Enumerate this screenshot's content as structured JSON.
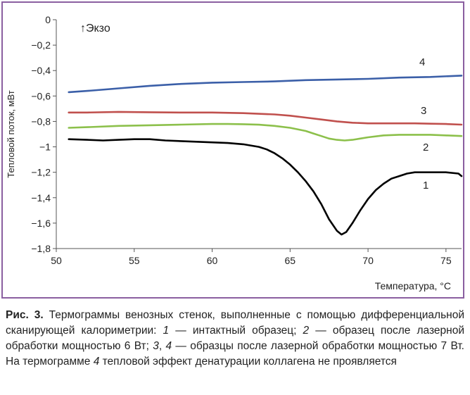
{
  "chart_data": {
    "type": "line",
    "title": "",
    "xlabel": "Температура, °С",
    "ylabel": "Тепловой поток, мВт",
    "annotation": "↑Экзо",
    "xlim": [
      50,
      76
    ],
    "ylim": [
      -1.8,
      0
    ],
    "xticks": [
      "50",
      "55",
      "60",
      "65",
      "70",
      "75"
    ],
    "yticks": [
      "0",
      "−0,2",
      "−0,4",
      "−0,6",
      "−0,8",
      "−1",
      "−1,2",
      "−1,4",
      "−1,6",
      "−1,8"
    ],
    "grid": false,
    "series": [
      {
        "name": "1",
        "color": "#000000",
        "x": [
          50.8,
          52,
          53,
          54,
          55,
          56,
          57,
          58,
          59,
          60,
          61,
          62,
          63,
          63.5,
          64,
          64.5,
          65,
          65.5,
          66,
          66.5,
          67,
          67.5,
          68,
          68.3,
          68.6,
          69,
          69.5,
          70,
          70.5,
          71,
          71.5,
          72,
          72.5,
          73,
          74,
          75,
          75.8,
          76
        ],
        "y": [
          -0.94,
          -0.945,
          -0.95,
          -0.945,
          -0.94,
          -0.94,
          -0.95,
          -0.955,
          -0.96,
          -0.965,
          -0.97,
          -0.98,
          -1.0,
          -1.02,
          -1.05,
          -1.09,
          -1.14,
          -1.2,
          -1.27,
          -1.35,
          -1.45,
          -1.57,
          -1.66,
          -1.69,
          -1.67,
          -1.6,
          -1.5,
          -1.41,
          -1.34,
          -1.29,
          -1.25,
          -1.23,
          -1.21,
          -1.2,
          -1.2,
          -1.2,
          -1.21,
          -1.23
        ]
      },
      {
        "name": "2",
        "color": "#8cc04b",
        "x": [
          50.8,
          52,
          54,
          56,
          58,
          60,
          61,
          62,
          63,
          64,
          65,
          66,
          66.5,
          67,
          67.5,
          68,
          68.5,
          69,
          69.5,
          70,
          71,
          72,
          73,
          74,
          75,
          76
        ],
        "y": [
          -0.85,
          -0.845,
          -0.835,
          -0.83,
          -0.825,
          -0.82,
          -0.82,
          -0.822,
          -0.826,
          -0.835,
          -0.85,
          -0.875,
          -0.895,
          -0.915,
          -0.935,
          -0.945,
          -0.95,
          -0.945,
          -0.935,
          -0.925,
          -0.91,
          -0.905,
          -0.905,
          -0.905,
          -0.91,
          -0.915
        ]
      },
      {
        "name": "3",
        "color": "#c0504d",
        "x": [
          50.8,
          52,
          54,
          56,
          58,
          60,
          62,
          64,
          65,
          66,
          67,
          68,
          69,
          70,
          71,
          72,
          73,
          74,
          75,
          76
        ],
        "y": [
          -0.73,
          -0.73,
          -0.725,
          -0.728,
          -0.73,
          -0.73,
          -0.735,
          -0.745,
          -0.755,
          -0.77,
          -0.785,
          -0.8,
          -0.81,
          -0.815,
          -0.815,
          -0.815,
          -0.815,
          -0.818,
          -0.82,
          -0.825
        ]
      },
      {
        "name": "4",
        "color": "#3b5fa8",
        "x": [
          50.8,
          52,
          54,
          56,
          58,
          60,
          62,
          64,
          66,
          68,
          70,
          72,
          74,
          76
        ],
        "y": [
          -0.57,
          -0.56,
          -0.54,
          -0.52,
          -0.505,
          -0.495,
          -0.49,
          -0.485,
          -0.475,
          -0.47,
          -0.465,
          -0.455,
          -0.45,
          -0.44
        ]
      }
    ]
  },
  "caption": {
    "label": "Рис. 3.",
    "text_before": " Термограммы венозных стенок, выполненные с помощью дифферен­циальной сканирующей калориметрии: ",
    "n1": "1",
    "t1": " — интактный образец; ",
    "n2": "2",
    "t2": " — образец после лазерной обработки мощностью 6 Вт; ",
    "n3": "3",
    "t3": ", ",
    "n4": "4",
    "t4": " — образцы после лазерной обработки мощностью 7 Вт. На термограмме ",
    "n5": "4",
    "t5": " тепловой эффект денатурации коллагена не проявляется"
  }
}
